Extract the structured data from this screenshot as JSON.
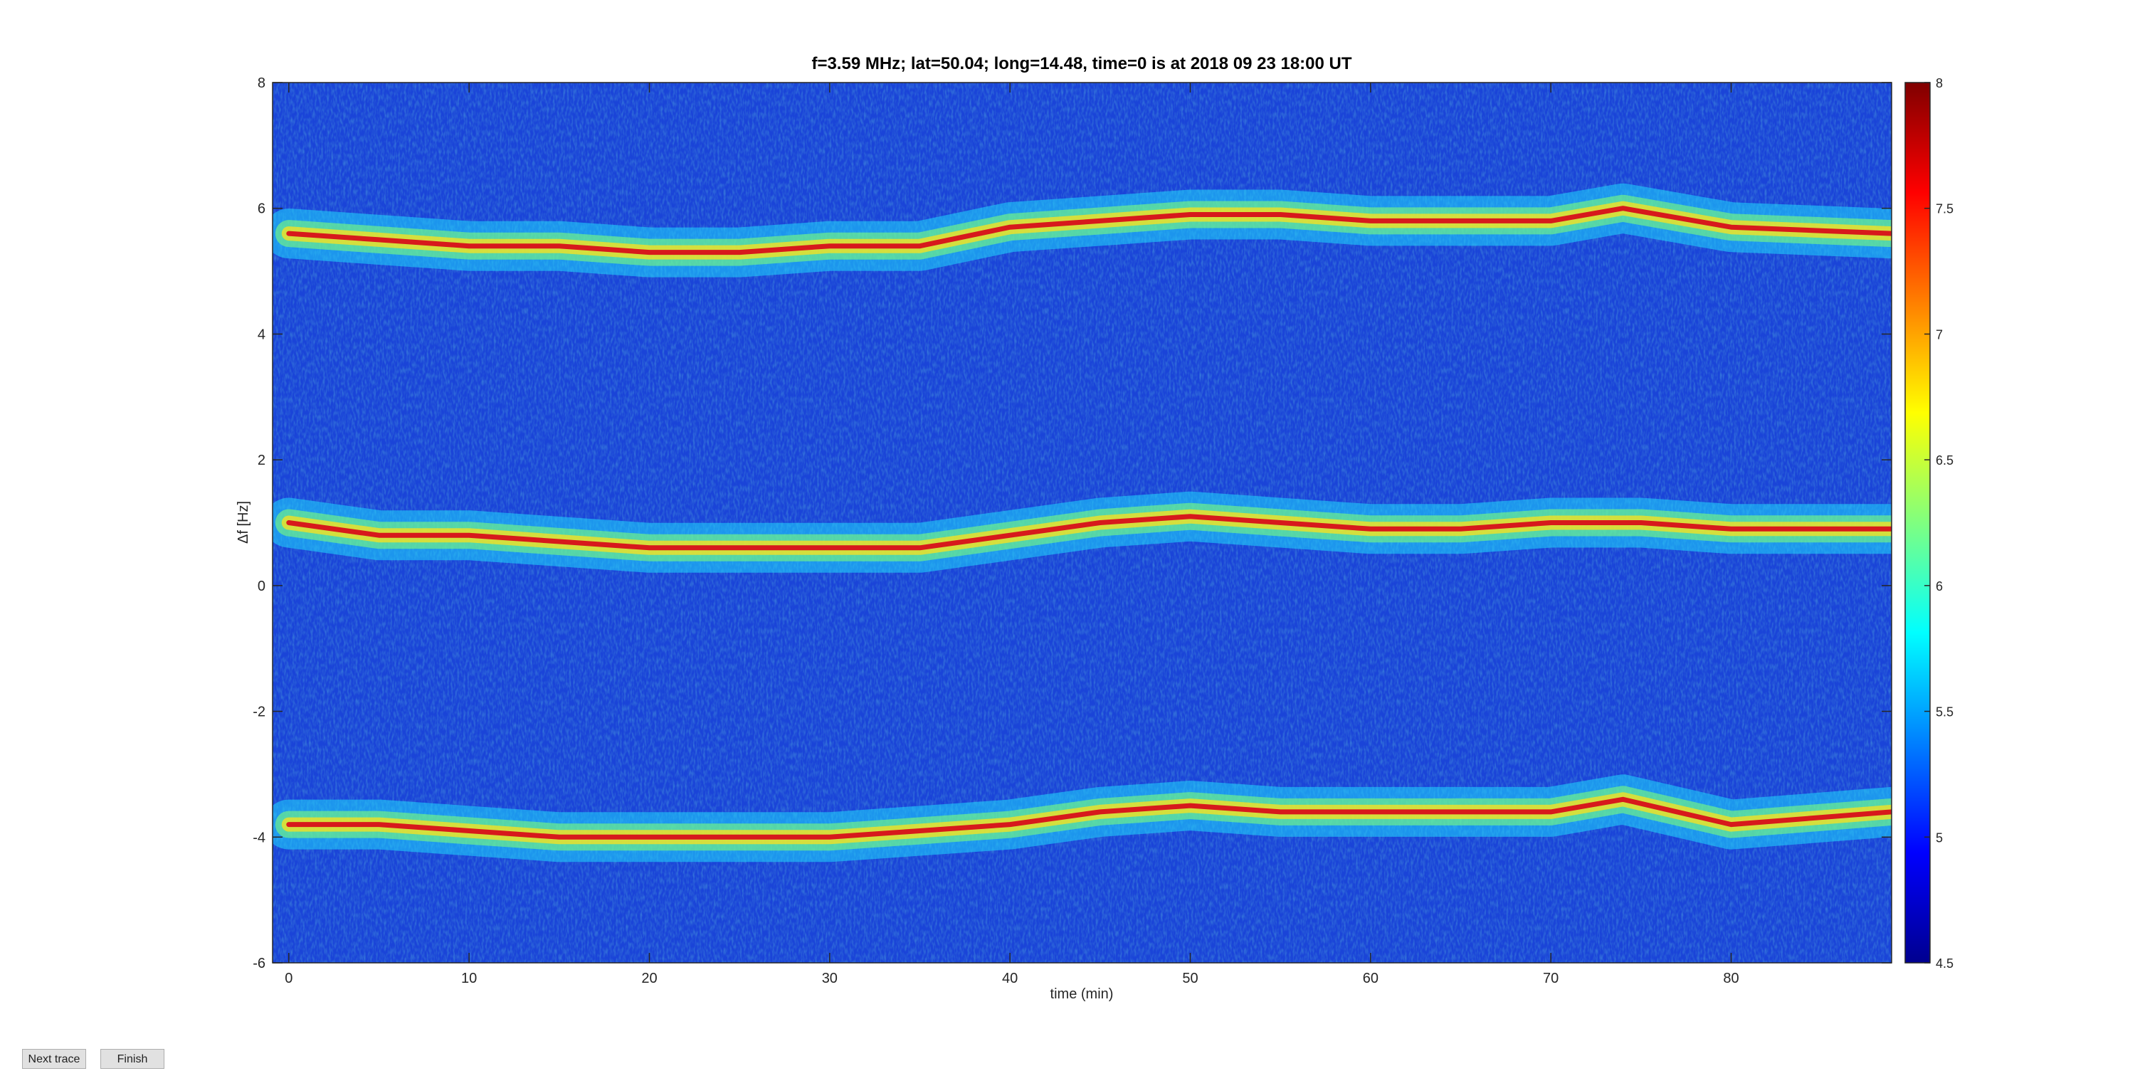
{
  "chart_data": {
    "type": "spectrogram",
    "title": "f=3.59 MHz;  lat=50.04; long=14.48, time=0 is at 2018 09 23 18:00 UT",
    "xlabel": "time (min)",
    "ylabel": "Δf [Hz]",
    "xlim": [
      -0.9,
      88.9
    ],
    "ylim": [
      -6,
      8
    ],
    "xticks": [
      0,
      10,
      20,
      30,
      40,
      50,
      60,
      70,
      80
    ],
    "yticks": [
      -6,
      -4,
      -2,
      0,
      2,
      4,
      6,
      8
    ],
    "clim": [
      4.5,
      8
    ],
    "cticks": [
      4.5,
      5,
      5.5,
      6,
      6.5,
      7,
      7.5,
      8
    ],
    "colormap": "jet",
    "background": "#1a44d8",
    "series": [
      {
        "color": "#d7191c",
        "x": [
          0,
          5,
          10,
          15,
          20,
          25,
          30,
          35,
          40,
          45,
          50,
          55,
          60,
          65,
          70,
          74,
          80,
          88.9
        ],
        "values": [
          5.6,
          5.5,
          5.4,
          5.4,
          5.3,
          5.3,
          5.4,
          5.4,
          5.7,
          5.8,
          5.9,
          5.9,
          5.8,
          5.8,
          5.8,
          6.0,
          5.7,
          5.6
        ]
      },
      {
        "color": "#d7191c",
        "x": [
          0,
          5,
          10,
          15,
          20,
          25,
          30,
          35,
          40,
          45,
          50,
          55,
          60,
          65,
          70,
          75,
          80,
          88.9
        ],
        "values": [
          1.0,
          0.8,
          0.8,
          0.7,
          0.6,
          0.6,
          0.6,
          0.6,
          0.8,
          1.0,
          1.1,
          1.0,
          0.9,
          0.9,
          1.0,
          1.0,
          0.9,
          0.9
        ]
      },
      {
        "color": "#d7191c",
        "x": [
          0,
          5,
          10,
          15,
          20,
          25,
          30,
          35,
          40,
          45,
          50,
          55,
          60,
          65,
          70,
          74,
          80,
          88.9
        ],
        "values": [
          -3.8,
          -3.8,
          -3.9,
          -4.0,
          -4.0,
          -4.0,
          -4.0,
          -3.9,
          -3.8,
          -3.6,
          -3.5,
          -3.6,
          -3.6,
          -3.6,
          -3.6,
          -3.4,
          -3.8,
          -3.6
        ]
      }
    ]
  },
  "buttons": [
    "Next trace",
    "Finish"
  ]
}
